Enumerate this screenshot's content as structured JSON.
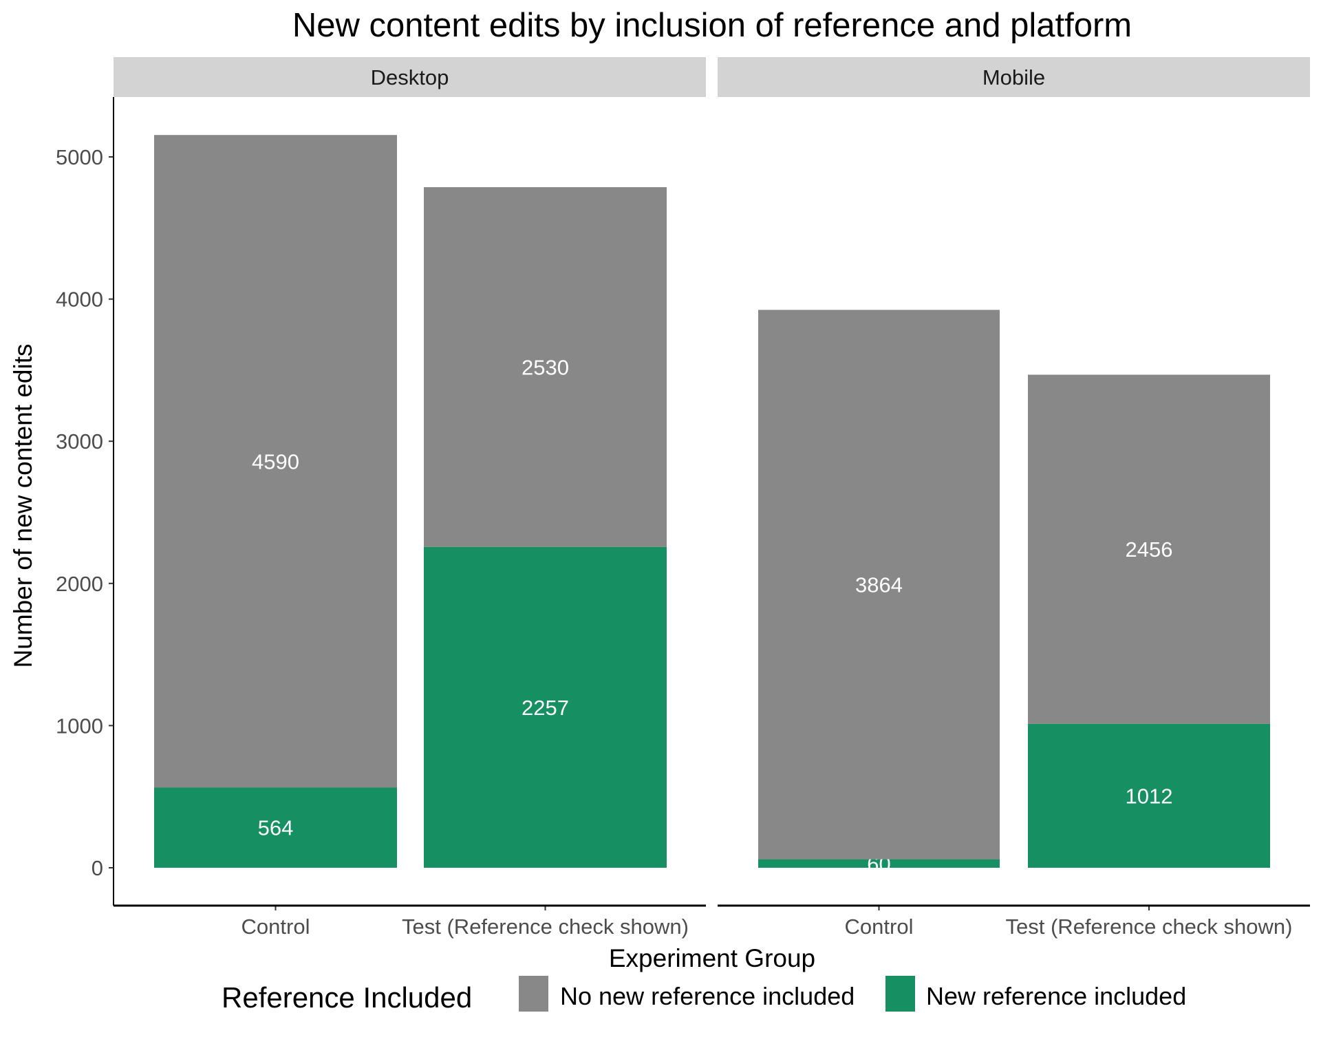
{
  "chart_data": {
    "type": "bar",
    "stacked": true,
    "title": "New content edits by inclusion of reference and platform",
    "xlabel": "Experiment Group",
    "ylabel": "Number of new content edits",
    "ylim": [
      -250,
      5400
    ],
    "yticks": [
      0,
      1000,
      2000,
      3000,
      4000,
      5000
    ],
    "facets": [
      "Desktop",
      "Mobile"
    ],
    "categories": [
      "Control",
      "Test (Reference check shown)"
    ],
    "legend": {
      "title": "Reference Included",
      "placement": "bottom"
    },
    "series": [
      {
        "name": "New reference included",
        "color": "#168f62",
        "values": {
          "Desktop": [
            564,
            2257
          ],
          "Mobile": [
            60,
            1012
          ]
        }
      },
      {
        "name": "No new reference included",
        "color": "#888888",
        "values": {
          "Desktop": [
            4590,
            2530
          ],
          "Mobile": [
            3864,
            2456
          ]
        }
      }
    ]
  }
}
